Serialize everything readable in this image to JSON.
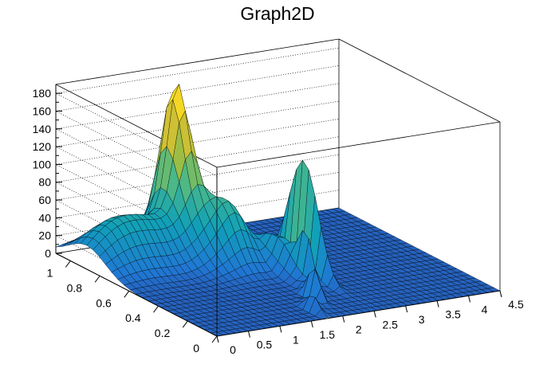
{
  "window": {
    "title": "Graph2D"
  },
  "chart_data": {
    "type": "surface",
    "title": "Graph2D",
    "xlabel": "",
    "ylabel": "",
    "zlabel": "",
    "x_ticks": [
      "0",
      "0.5",
      "1",
      "1.5",
      "2",
      "2.5",
      "3",
      "3.5",
      "4",
      "4.5"
    ],
    "x_tick_values": [
      0,
      0.5,
      1,
      1.5,
      2,
      2.5,
      3,
      3.5,
      4,
      4.5
    ],
    "y_ticks": [
      "0",
      "0.2",
      "0.4",
      "0.6",
      "0.8",
      "1"
    ],
    "y_tick_values": [
      0,
      0.2,
      0.4,
      0.6,
      0.8,
      1
    ],
    "z_ticks": [
      "0",
      "20",
      "40",
      "60",
      "80",
      "100",
      "120",
      "140",
      "160",
      "180"
    ],
    "z_tick_values": [
      0,
      20,
      40,
      60,
      80,
      100,
      120,
      140,
      160,
      180
    ],
    "xlim": [
      0,
      4.5
    ],
    "ylim": [
      0,
      1.1
    ],
    "zlim": [
      0,
      190
    ],
    "colormap": [
      "#352a87",
      "#1f78d4",
      "#11a0b8",
      "#49b88a",
      "#a8be3a",
      "#f2c230",
      "#f9fb0e"
    ],
    "grid": true,
    "features": [
      {
        "name": "main-peak",
        "x": 1.55,
        "y": 0.95,
        "z": 186
      },
      {
        "name": "secondary-peak",
        "x": 2.55,
        "y": 0.5,
        "z": 130
      },
      {
        "name": "ridge",
        "x": 0.9,
        "y": 0.85,
        "z": 48
      }
    ]
  }
}
